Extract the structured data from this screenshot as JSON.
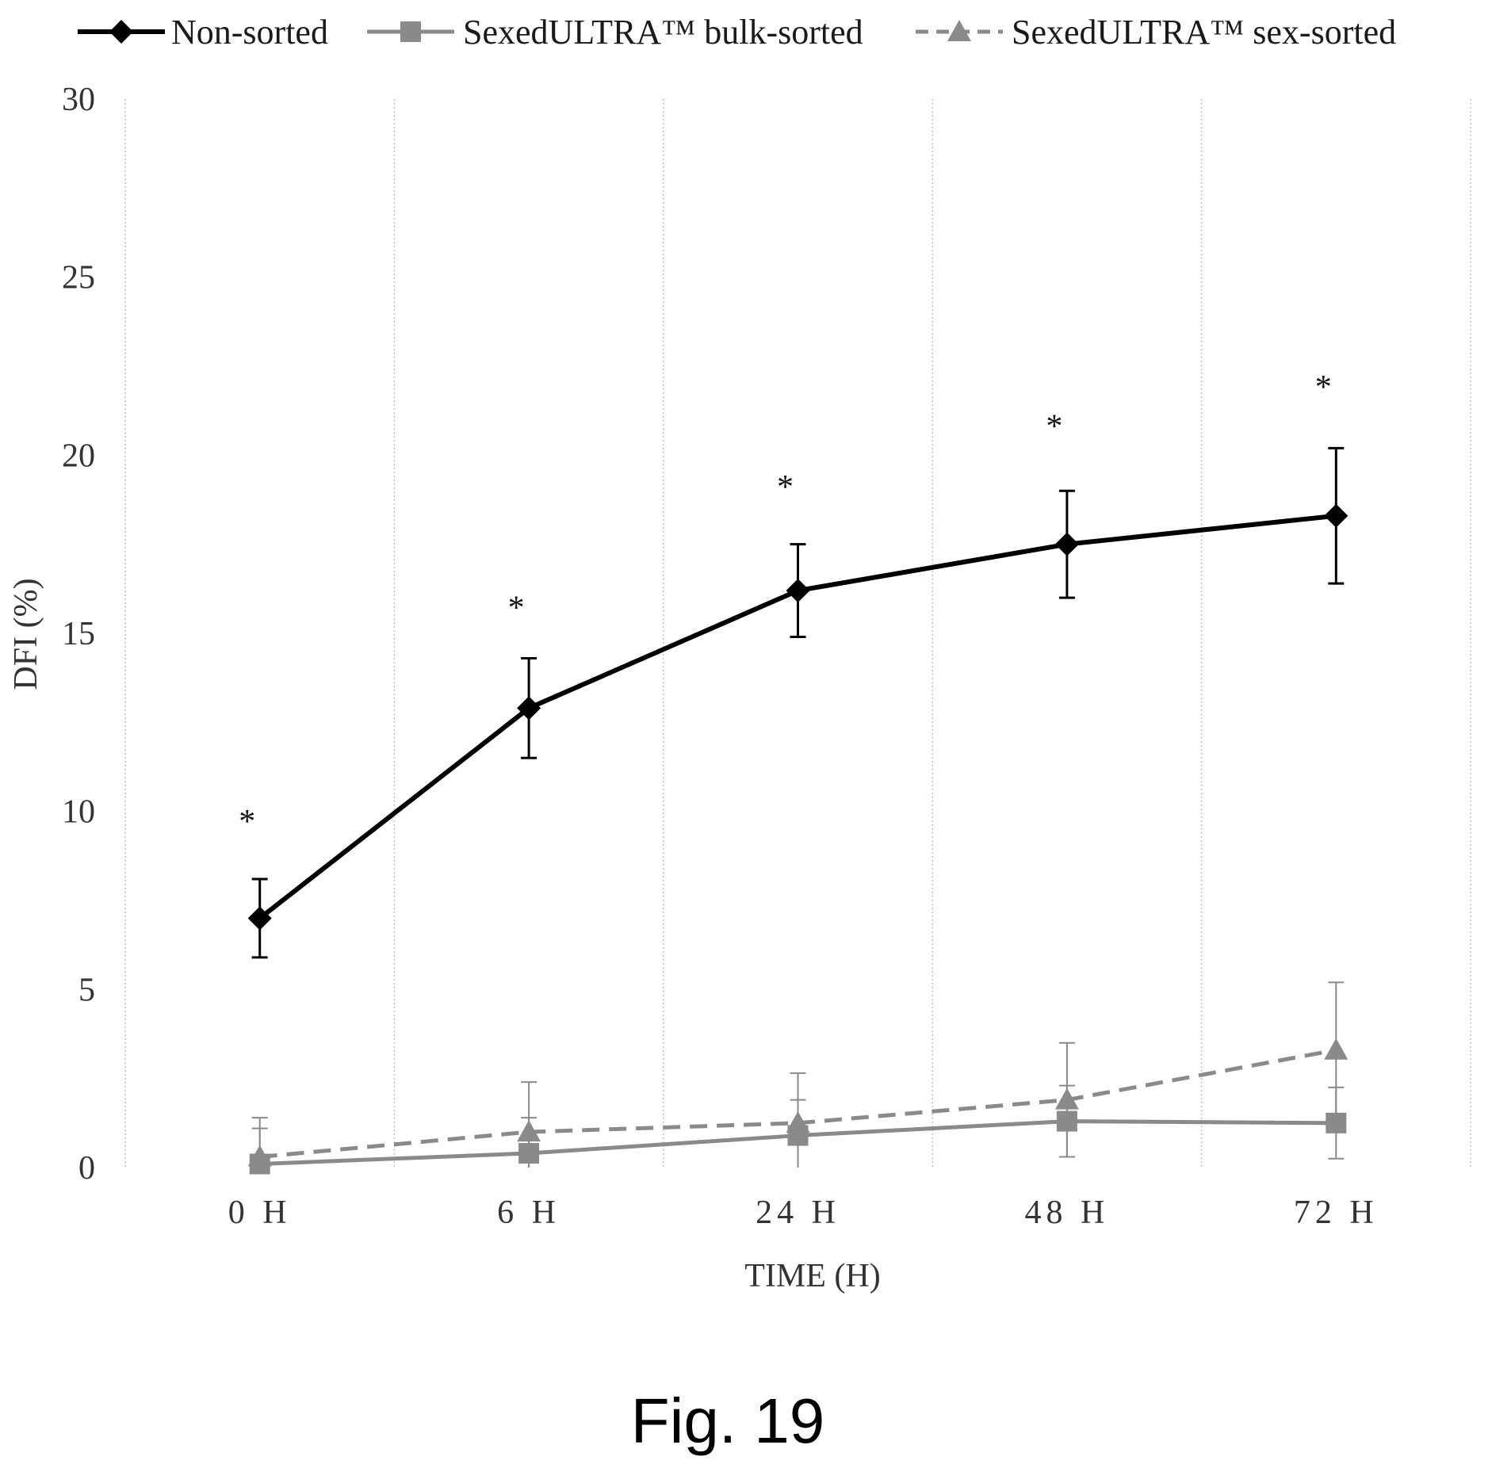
{
  "chart_data": {
    "type": "line",
    "title": "",
    "xlabel": "TIME (H)",
    "ylabel": "DFI (%)",
    "categories": [
      "0  H",
      "6  H",
      "24  H",
      "48  H",
      "72  H"
    ],
    "ylim": [
      0,
      30
    ],
    "yticks": [
      0,
      5,
      10,
      15,
      20,
      25,
      30
    ],
    "grid": "vertical",
    "legend": "top",
    "series": [
      {
        "name": "Non-sorted",
        "values": [
          7.0,
          12.9,
          16.2,
          17.5,
          18.3
        ],
        "error": [
          1.1,
          1.4,
          1.3,
          1.5,
          1.9
        ],
        "marker": "diamond",
        "line": "solid",
        "color": "#000000"
      },
      {
        "name": "SexedULTRA™ bulk-sorted",
        "values": [
          0.1,
          0.4,
          0.9,
          1.3,
          1.25
        ],
        "error": [
          1.0,
          1.0,
          1.0,
          1.0,
          1.0
        ],
        "marker": "square",
        "line": "solid",
        "color": "#8a8a8a"
      },
      {
        "name": "SexedULTRA™ sex-sorted",
        "values": [
          0.3,
          1.0,
          1.25,
          1.9,
          3.3
        ],
        "error": [
          1.1,
          1.4,
          1.4,
          1.6,
          1.9
        ],
        "marker": "triangle",
        "line": "dashed",
        "color": "#8a8a8a"
      }
    ],
    "annotations": [
      {
        "label": "*",
        "category_index": 0,
        "y": 9.9
      },
      {
        "label": "*",
        "category_index": 1,
        "y": 15.9
      },
      {
        "label": "*",
        "category_index": 2,
        "y": 19.3
      },
      {
        "label": "*",
        "category_index": 3,
        "y": 21.0
      },
      {
        "label": "*",
        "category_index": 4,
        "y": 22.1
      }
    ]
  },
  "figure_caption": "Fig. 19"
}
